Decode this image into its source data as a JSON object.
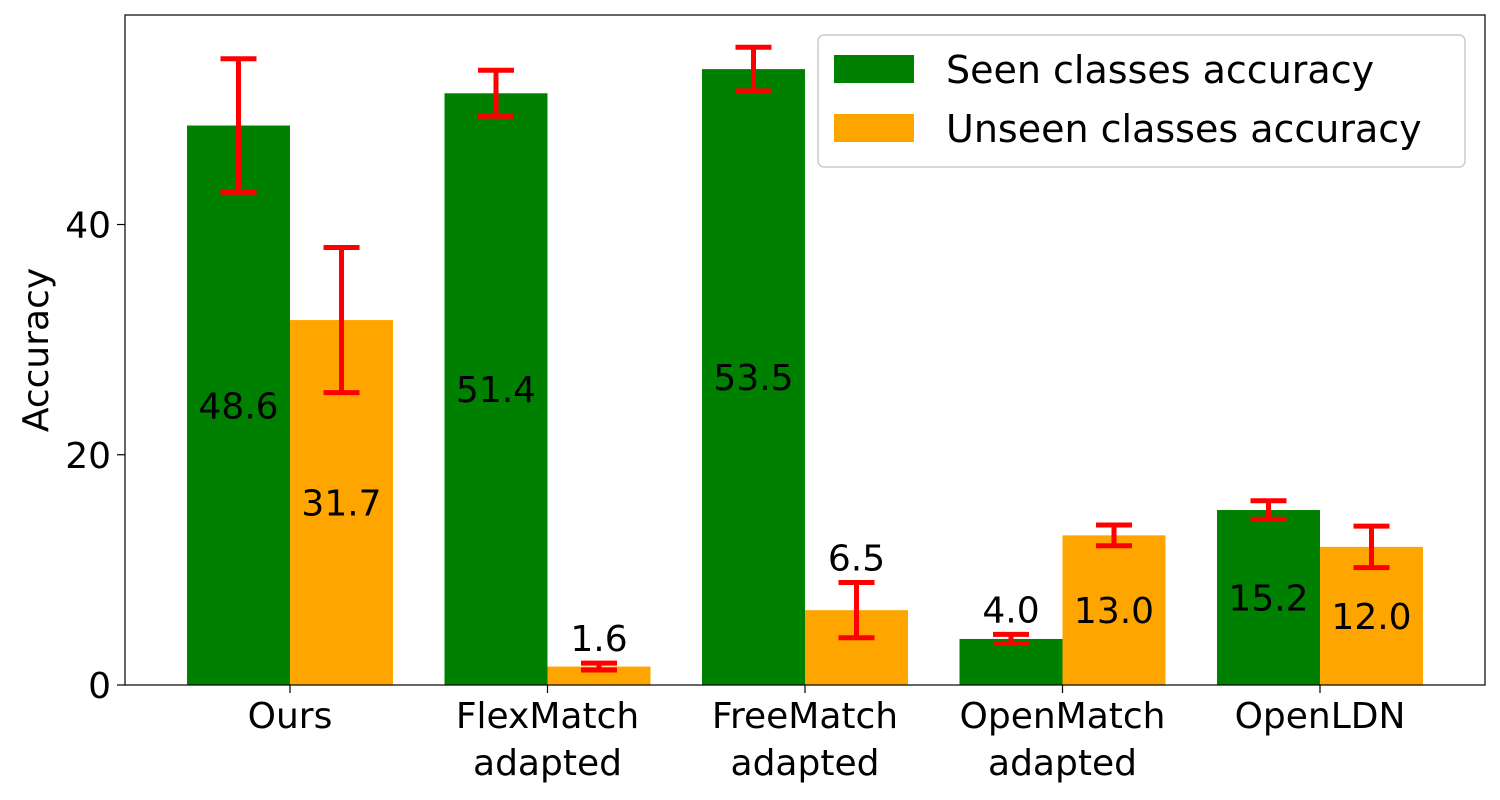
{
  "chart_data": {
    "type": "bar",
    "title": "",
    "xlabel": "",
    "ylabel": "Accuracy",
    "ylim": [
      0,
      58.2
    ],
    "yticks": [
      0,
      20,
      40
    ],
    "grid": false,
    "legend_position": "top-right",
    "categories": [
      [
        "Ours"
      ],
      [
        "FlexMatch",
        "adapted"
      ],
      [
        "FreeMatch",
        "adapted"
      ],
      [
        "OpenMatch",
        "adapted"
      ],
      [
        "OpenLDN"
      ]
    ],
    "series": [
      {
        "name": "Seen classes accuracy",
        "color": "#008000",
        "values": [
          48.6,
          51.4,
          53.5,
          4.0,
          15.2
        ],
        "labels": [
          "48.6",
          "51.4",
          "53.5",
          "4.0",
          "15.2"
        ],
        "error": [
          5.8,
          2.0,
          1.9,
          0.4,
          0.8
        ],
        "label_position": [
          "inside",
          "inside",
          "inside",
          "above",
          "inside"
        ]
      },
      {
        "name": "Unseen classes accuracy",
        "color": "#FFA500",
        "values": [
          31.7,
          1.6,
          6.5,
          13.0,
          12.0
        ],
        "labels": [
          "31.7",
          "1.6",
          "6.5",
          "13.0",
          "12.0"
        ],
        "error": [
          6.3,
          0.3,
          2.4,
          0.9,
          1.8
        ],
        "label_position": [
          "inside",
          "above",
          "above",
          "inside",
          "inside"
        ]
      }
    ],
    "error_bar_color": "#FF0000"
  }
}
